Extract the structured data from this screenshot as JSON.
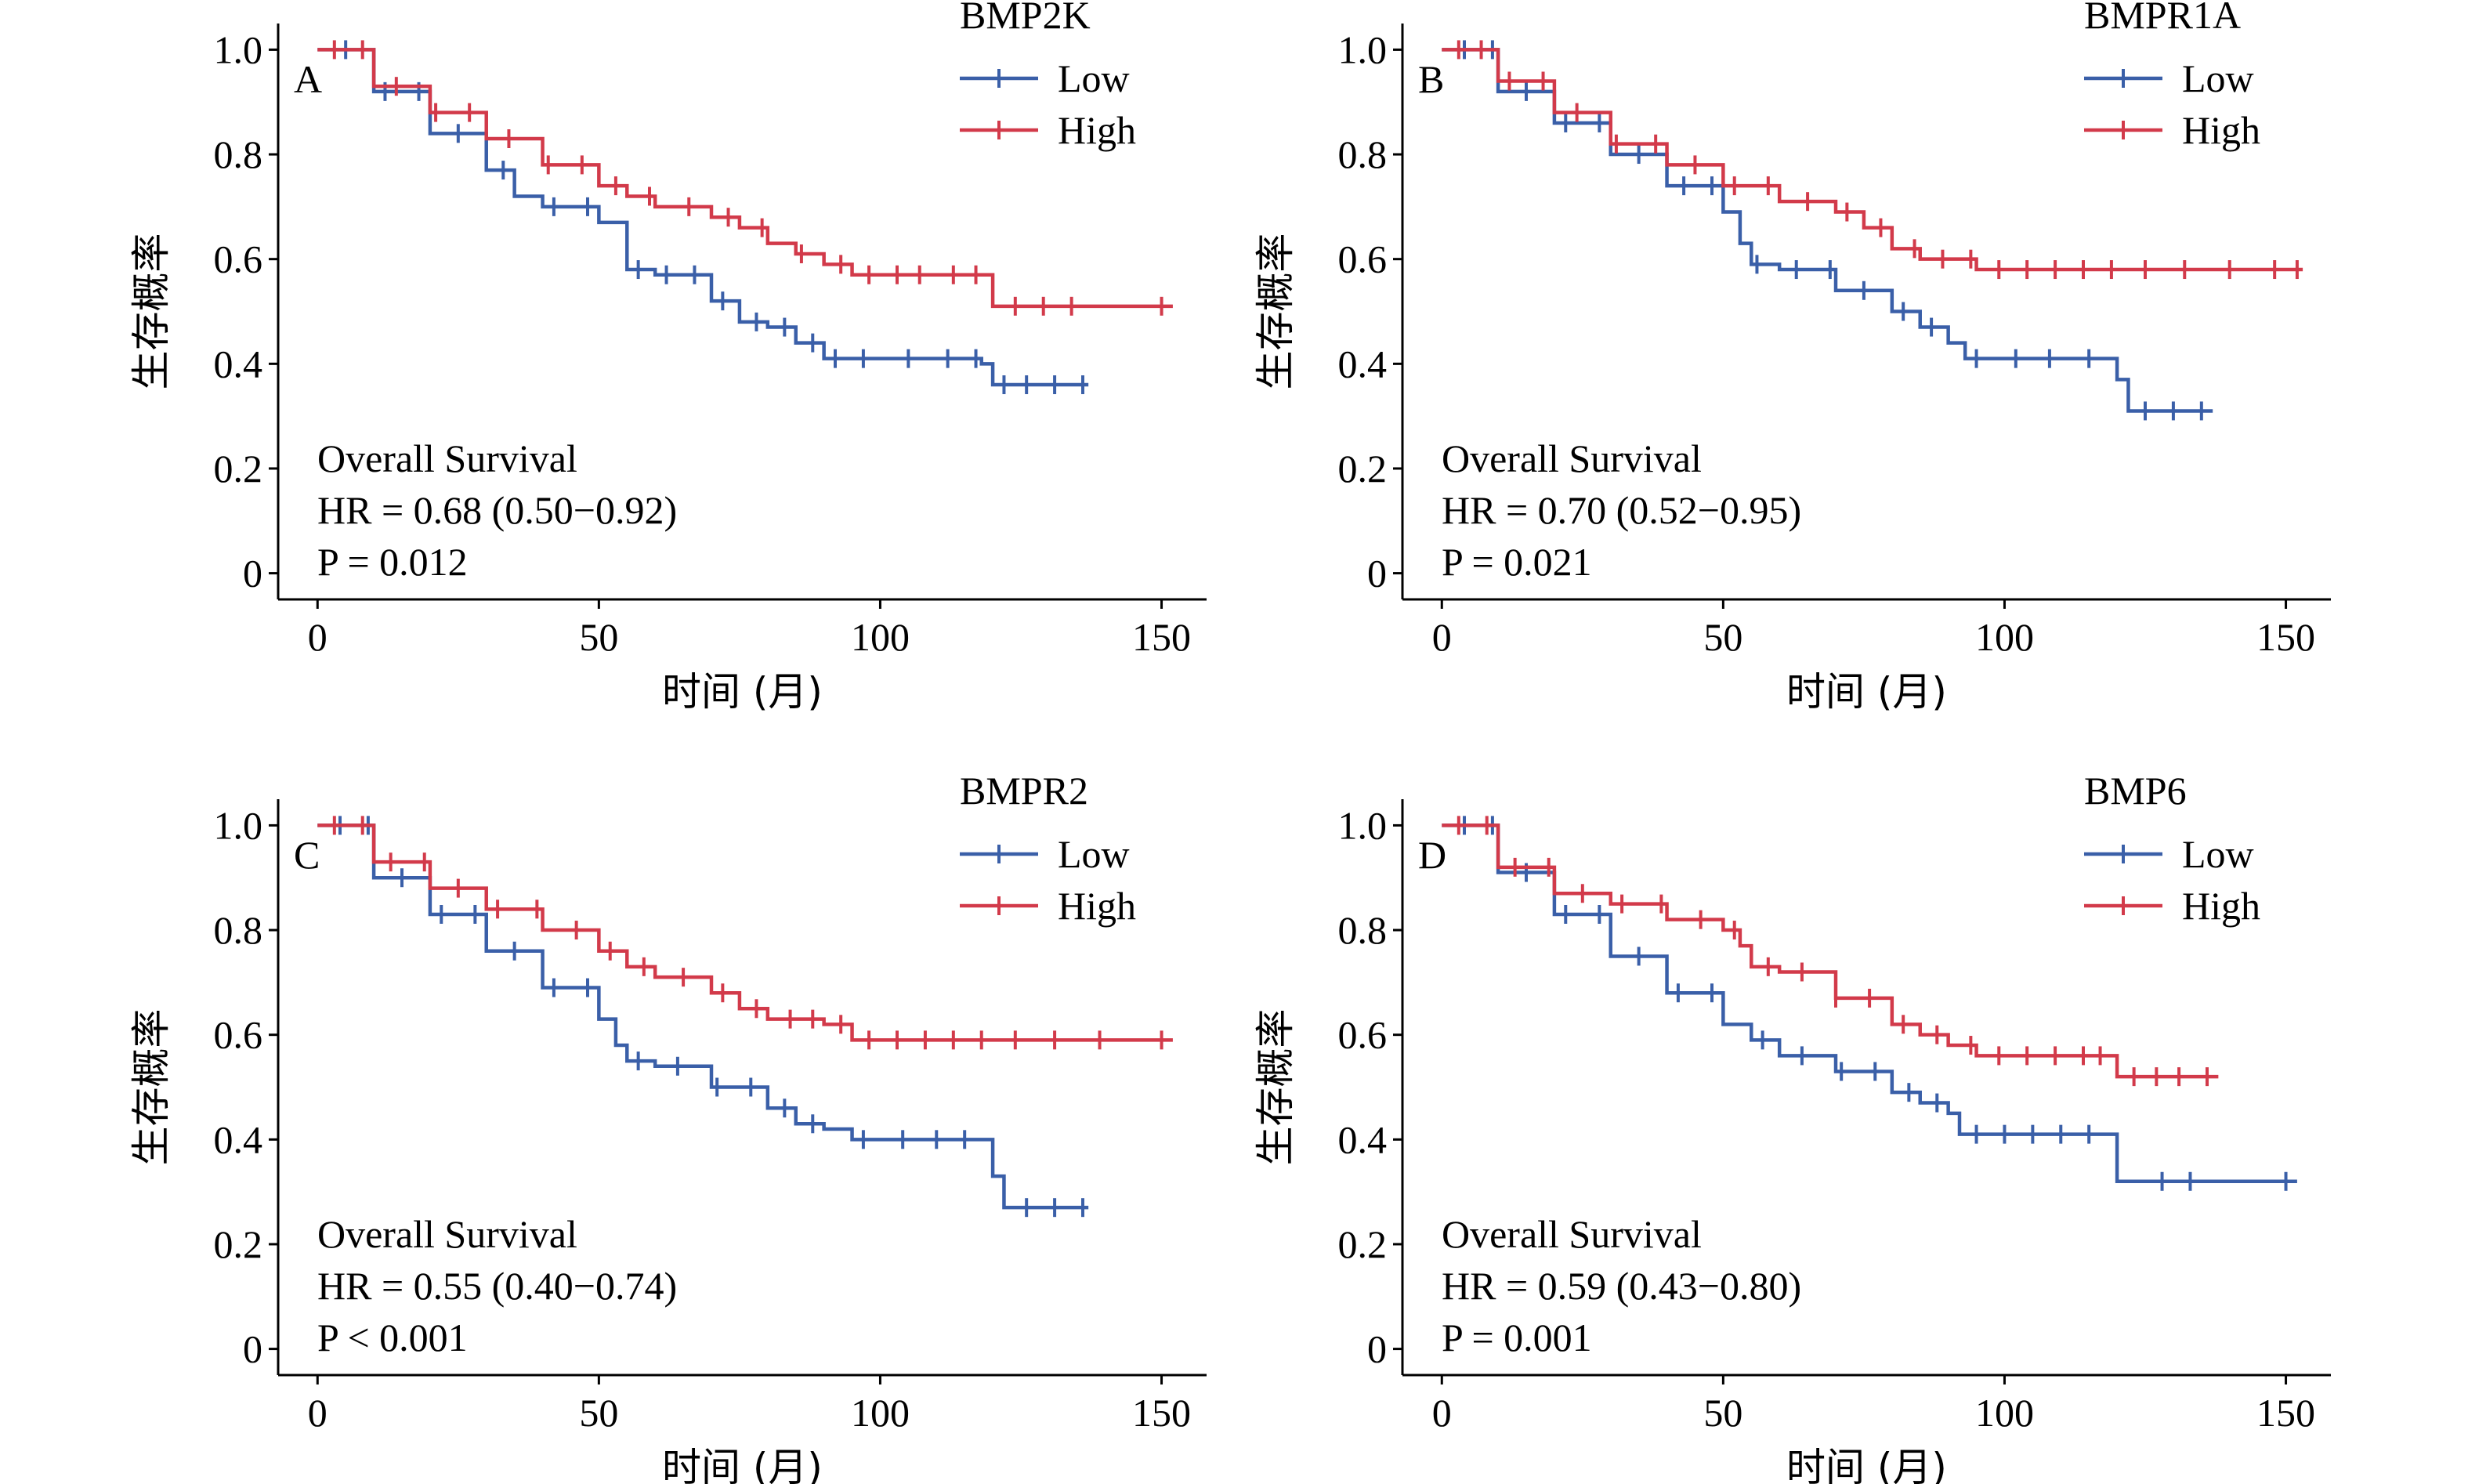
{
  "chart_data": [
    {
      "type": "line",
      "panel_letter": "A",
      "legend_title": "BMP2K",
      "xlabel": "时间 (月)",
      "ylabel": "生存概率",
      "xlim": [
        -7,
        158
      ],
      "ylim": [
        -0.05,
        1.05
      ],
      "xticks": [
        0,
        50,
        100,
        150
      ],
      "yticks": [
        0,
        0.2,
        0.4,
        0.6,
        0.8,
        1.0
      ],
      "ytick_labels": [
        "0",
        "0.2",
        "0.4",
        "0.6",
        "0.8",
        "1.0"
      ],
      "grid": false,
      "legend_position": "top-right",
      "annotation": [
        "Overall Survival",
        "HR = 0.68 (0.50−0.92)",
        "P = 0.012"
      ],
      "series": [
        {
          "name": "Low",
          "color": "#3a5fa8",
          "x": [
            0,
            10,
            20,
            30,
            35,
            40,
            50,
            55,
            60,
            70,
            75,
            80,
            85,
            90,
            100,
            110,
            118,
            120,
            137
          ],
          "y": [
            1.0,
            0.92,
            0.84,
            0.77,
            0.72,
            0.7,
            0.67,
            0.58,
            0.57,
            0.52,
            0.48,
            0.47,
            0.44,
            0.41,
            0.41,
            0.41,
            0.4,
            0.36,
            0.36
          ],
          "censor_x": [
            5,
            12,
            18,
            25,
            33,
            42,
            48,
            57,
            62,
            67,
            72,
            78,
            83,
            88,
            92,
            97,
            105,
            112,
            117,
            122,
            126,
            131,
            136
          ]
        },
        {
          "name": "High",
          "color": "#d23a4a",
          "x": [
            0,
            10,
            20,
            30,
            40,
            50,
            55,
            60,
            70,
            75,
            80,
            85,
            90,
            95,
            100,
            110,
            120,
            130,
            152
          ],
          "y": [
            1.0,
            0.93,
            0.88,
            0.83,
            0.78,
            0.74,
            0.72,
            0.7,
            0.68,
            0.66,
            0.63,
            0.61,
            0.59,
            0.57,
            0.57,
            0.57,
            0.51,
            0.51,
            0.51
          ],
          "censor_x": [
            3,
            8,
            14,
            21,
            27,
            34,
            41,
            47,
            53,
            59,
            66,
            73,
            79,
            86,
            93,
            98,
            103,
            107,
            113,
            117,
            124,
            129,
            134,
            150
          ]
        }
      ]
    },
    {
      "type": "line",
      "panel_letter": "B",
      "legend_title": "BMPR1A",
      "xlabel": "时间 (月)",
      "ylabel": "生存概率",
      "xlim": [
        -7,
        158
      ],
      "ylim": [
        -0.05,
        1.05
      ],
      "xticks": [
        0,
        50,
        100,
        150
      ],
      "yticks": [
        0,
        0.2,
        0.4,
        0.6,
        0.8,
        1.0
      ],
      "ytick_labels": [
        "0",
        "0.2",
        "0.4",
        "0.6",
        "0.8",
        "1.0"
      ],
      "grid": false,
      "legend_position": "top-right",
      "annotation": [
        "Overall Survival",
        "HR = 0.70 (0.52−0.95)",
        "P = 0.021"
      ],
      "series": [
        {
          "name": "Low",
          "color": "#3a5fa8",
          "x": [
            0,
            10,
            20,
            30,
            40,
            50,
            53,
            55,
            60,
            70,
            80,
            85,
            90,
            93,
            100,
            110,
            118,
            120,
            122,
            137
          ],
          "y": [
            1.0,
            0.92,
            0.86,
            0.8,
            0.74,
            0.69,
            0.63,
            0.59,
            0.58,
            0.54,
            0.5,
            0.47,
            0.44,
            0.41,
            0.41,
            0.41,
            0.41,
            0.37,
            0.31,
            0.31
          ],
          "censor_x": [
            4,
            9,
            15,
            22,
            28,
            35,
            43,
            48,
            56,
            63,
            69,
            75,
            82,
            87,
            95,
            102,
            108,
            115,
            125,
            130,
            135
          ]
        },
        {
          "name": "High",
          "color": "#d23a4a",
          "x": [
            0,
            10,
            20,
            30,
            40,
            50,
            60,
            70,
            75,
            80,
            85,
            90,
            95,
            100,
            110,
            120,
            130,
            153
          ],
          "y": [
            1.0,
            0.94,
            0.88,
            0.82,
            0.78,
            0.74,
            0.71,
            0.69,
            0.66,
            0.62,
            0.6,
            0.6,
            0.58,
            0.58,
            0.58,
            0.58,
            0.58,
            0.58
          ],
          "censor_x": [
            3,
            7,
            12,
            18,
            24,
            31,
            38,
            45,
            52,
            58,
            65,
            72,
            78,
            84,
            89,
            94,
            99,
            104,
            109,
            114,
            119,
            125,
            132,
            140,
            148,
            152
          ]
        }
      ]
    },
    {
      "type": "line",
      "panel_letter": "C",
      "legend_title": "BMPR2",
      "xlabel": "时间 (月)",
      "ylabel": "生存概率",
      "xlim": [
        -7,
        158
      ],
      "ylim": [
        -0.05,
        1.05
      ],
      "xticks": [
        0,
        50,
        100,
        150
      ],
      "yticks": [
        0,
        0.2,
        0.4,
        0.6,
        0.8,
        1.0
      ],
      "ytick_labels": [
        "0",
        "0.2",
        "0.4",
        "0.6",
        "0.8",
        "1.0"
      ],
      "grid": false,
      "legend_position": "top-right",
      "annotation": [
        "Overall Survival",
        "HR = 0.55 (0.40−0.74)",
        "P < 0.001"
      ],
      "series": [
        {
          "name": "Low",
          "color": "#3a5fa8",
          "x": [
            0,
            10,
            20,
            30,
            40,
            50,
            53,
            55,
            60,
            70,
            80,
            85,
            90,
            95,
            100,
            110,
            118,
            120,
            122,
            137
          ],
          "y": [
            1.0,
            0.9,
            0.83,
            0.76,
            0.69,
            0.63,
            0.58,
            0.55,
            0.54,
            0.5,
            0.46,
            0.43,
            0.42,
            0.4,
            0.4,
            0.4,
            0.4,
            0.33,
            0.27,
            0.27
          ],
          "censor_x": [
            4,
            9,
            15,
            22,
            28,
            35,
            42,
            48,
            57,
            64,
            71,
            77,
            83,
            88,
            97,
            104,
            110,
            115,
            126,
            131,
            136
          ]
        },
        {
          "name": "High",
          "color": "#d23a4a",
          "x": [
            0,
            10,
            20,
            30,
            40,
            50,
            55,
            60,
            70,
            75,
            80,
            90,
            95,
            100,
            110,
            152
          ],
          "y": [
            1.0,
            0.93,
            0.88,
            0.84,
            0.8,
            0.76,
            0.73,
            0.71,
            0.68,
            0.65,
            0.63,
            0.62,
            0.59,
            0.59,
            0.59,
            0.59
          ],
          "censor_x": [
            3,
            8,
            13,
            19,
            25,
            32,
            39,
            46,
            52,
            58,
            65,
            72,
            78,
            84,
            88,
            93,
            98,
            103,
            108,
            113,
            118,
            124,
            131,
            139,
            150
          ]
        }
      ]
    },
    {
      "type": "line",
      "panel_letter": "D",
      "legend_title": "BMP6",
      "xlabel": "时间 (月)",
      "ylabel": "生存概率",
      "xlim": [
        -7,
        158
      ],
      "ylim": [
        -0.05,
        1.05
      ],
      "xticks": [
        0,
        50,
        100,
        150
      ],
      "yticks": [
        0,
        0.2,
        0.4,
        0.6,
        0.8,
        1.0
      ],
      "ytick_labels": [
        "0",
        "0.2",
        "0.4",
        "0.6",
        "0.8",
        "1.0"
      ],
      "grid": false,
      "legend_position": "top-right",
      "annotation": [
        "Overall Survival",
        "HR = 0.59 (0.43−0.80)",
        "P = 0.001"
      ],
      "series": [
        {
          "name": "Low",
          "color": "#3a5fa8",
          "x": [
            0,
            10,
            20,
            30,
            40,
            50,
            55,
            60,
            70,
            80,
            85,
            90,
            92,
            100,
            110,
            118,
            120,
            152
          ],
          "y": [
            1.0,
            0.91,
            0.83,
            0.75,
            0.68,
            0.62,
            0.59,
            0.56,
            0.53,
            0.49,
            0.47,
            0.45,
            0.41,
            0.41,
            0.41,
            0.41,
            0.32,
            0.32
          ],
          "censor_x": [
            4,
            9,
            15,
            22,
            28,
            35,
            42,
            48,
            57,
            64,
            71,
            77,
            83,
            88,
            95,
            100,
            105,
            110,
            115,
            128,
            133,
            150
          ]
        },
        {
          "name": "High",
          "color": "#d23a4a",
          "x": [
            0,
            10,
            20,
            30,
            40,
            50,
            53,
            55,
            60,
            70,
            80,
            85,
            90,
            95,
            100,
            110,
            118,
            120,
            138
          ],
          "y": [
            1.0,
            0.92,
            0.87,
            0.85,
            0.82,
            0.8,
            0.77,
            0.73,
            0.72,
            0.67,
            0.62,
            0.6,
            0.58,
            0.56,
            0.56,
            0.56,
            0.56,
            0.52,
            0.52
          ],
          "censor_x": [
            3,
            8,
            13,
            19,
            25,
            32,
            39,
            46,
            52,
            58,
            64,
            70,
            76,
            82,
            88,
            94,
            99,
            104,
            109,
            114,
            117,
            123,
            127,
            131,
            136
          ]
        }
      ]
    }
  ]
}
